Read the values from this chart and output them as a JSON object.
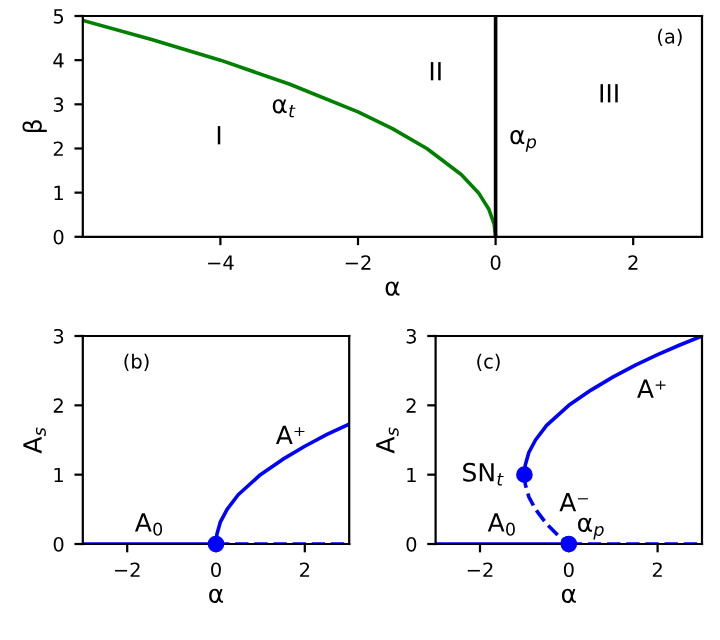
{
  "chart_data": [
    {
      "type": "line",
      "xlabel": "α",
      "ylabel": "β",
      "xlim": [
        -6,
        3
      ],
      "ylim": [
        0,
        5
      ],
      "xticks": [
        -4,
        -2,
        0,
        2
      ],
      "yticks": [
        0,
        1,
        2,
        3,
        4,
        5
      ],
      "grid": false,
      "legend": false,
      "series": [
        {
          "color": "#008000",
          "x": [
            -6,
            -5,
            -4,
            -3,
            -2,
            -1.5,
            -1,
            -0.5,
            -0.25,
            -0.1,
            -0.02,
            0
          ],
          "values": [
            4.9,
            4.47,
            4.0,
            3.46,
            2.83,
            2.45,
            2.0,
            1.41,
            1.0,
            0.63,
            0.28,
            0
          ]
        }
      ],
      "ref_lines": [
        {
          "axis": "x",
          "value": 0,
          "color": "#000000"
        }
      ],
      "annotations": [
        "(a)",
        "I",
        "II",
        "III",
        {
          "text": "α$_{t}$",
          "x": -3,
          "y": 3.46
        },
        {
          "text": "α$_{p}$",
          "x": 0,
          "y": 2.2
        }
      ]
    },
    {
      "type": "line",
      "xlabel": "α",
      "ylabel": "A$_{s}$",
      "xlim": [
        -3,
        3
      ],
      "ylim": [
        0,
        3
      ],
      "xticks": [
        -2,
        0,
        2
      ],
      "yticks": [
        0,
        1,
        2,
        3
      ],
      "grid": false,
      "legend": false,
      "series": [
        {
          "color": "#0000ff",
          "x": [
            -3,
            0
          ],
          "values": [
            0,
            0
          ],
          "line_style": "solid"
        },
        {
          "color": "#0000ff",
          "x": [
            0,
            3
          ],
          "values": [
            0,
            0
          ],
          "line_style": "dashed"
        },
        {
          "color": "#0000ff",
          "x": [
            0,
            0.02,
            0.1,
            0.25,
            0.5,
            1,
            1.5,
            2,
            2.5,
            3
          ],
          "values": [
            0,
            0.14,
            0.32,
            0.5,
            0.71,
            1,
            1.22,
            1.41,
            1.58,
            1.73
          ],
          "line_style": "solid"
        },
        {
          "type": "scatter",
          "color": "#0000ff",
          "x": [
            0
          ],
          "values": [
            0
          ],
          "marker": "circle"
        }
      ],
      "annotations": [
        "(b)",
        {
          "text": "A⁺",
          "x": 1.5,
          "y": 1.22
        },
        {
          "text": "A$_{0}$",
          "x": -1.5,
          "y": 0
        }
      ]
    },
    {
      "type": "line",
      "xlabel": "α",
      "ylabel": "A$_{s}$",
      "xlim": [
        -3,
        3
      ],
      "ylim": [
        0,
        3
      ],
      "xticks": [
        -2,
        0,
        2
      ],
      "yticks": [
        0,
        1,
        2,
        3
      ],
      "grid": false,
      "legend": false,
      "series": [
        {
          "color": "#0000ff",
          "x": [
            -3,
            0
          ],
          "values": [
            0,
            0
          ],
          "line_style": "solid"
        },
        {
          "color": "#0000ff",
          "x": [
            0,
            3
          ],
          "values": [
            0,
            0
          ],
          "line_style": "dashed"
        },
        {
          "color": "#0000ff",
          "x": [
            -1,
            -0.98,
            -0.9,
            -0.75,
            -0.5,
            0,
            0.5,
            1,
            1.5,
            2,
            2.5,
            3
          ],
          "values": [
            1,
            1.14,
            1.32,
            1.5,
            1.71,
            2,
            2.22,
            2.41,
            2.58,
            2.73,
            2.87,
            3
          ],
          "line_style": "solid"
        },
        {
          "color": "#0000ff",
          "x": [
            -1,
            -0.98,
            -0.9,
            -0.75,
            -0.5,
            -0.25,
            0
          ],
          "values": [
            1,
            0.86,
            0.68,
            0.5,
            0.29,
            0.13,
            0
          ],
          "line_style": "dashed"
        },
        {
          "type": "scatter",
          "color": "#0000ff",
          "x": [
            -1,
            0
          ],
          "values": [
            1,
            0
          ],
          "marker": "circle"
        }
      ],
      "annotations": [
        "(c)",
        {
          "text": "A⁺",
          "x": 2,
          "y": 2.73
        },
        {
          "text": "SN$_{t}$",
          "x": -1,
          "y": 1
        },
        {
          "text": "A⁻",
          "x": -0.5,
          "y": 0.29
        },
        {
          "text": "α$_{p}$",
          "x": 0,
          "y": 0
        },
        {
          "text": "A$_{0}$",
          "x": -1.5,
          "y": 0
        }
      ]
    }
  ]
}
